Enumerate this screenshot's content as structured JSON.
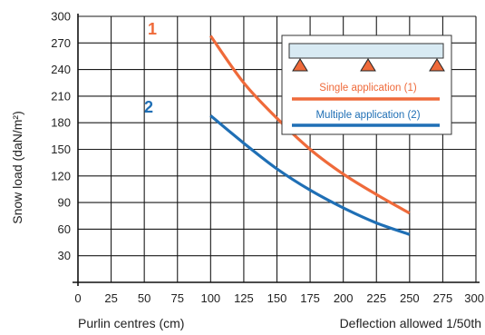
{
  "chart_data": {
    "type": "line",
    "xlabel": "Purlin centres (cm)",
    "x_note": "Deflection allowed 1/50th",
    "ylabel": "Snow load  (daN/m²)",
    "xlim": [
      0,
      300
    ],
    "ylim": [
      0,
      300
    ],
    "x_ticks": [
      "0",
      "25",
      "50",
      "75",
      "100",
      "125",
      "150",
      "175",
      "200",
      "225",
      "250",
      "275",
      "300"
    ],
    "y_ticks": [
      "30",
      "60",
      "90",
      "120",
      "150",
      "180",
      "210",
      "240",
      "270",
      "300"
    ],
    "grid": true,
    "legend_placement": "top-right",
    "series": [
      {
        "name": "Single application (1)",
        "curve_label": "1",
        "color": "#ef6a3a",
        "x": [
          100,
          125,
          150,
          175,
          200,
          225,
          250
        ],
        "y": [
          278,
          225,
          185,
          150,
          122,
          99,
          78
        ]
      },
      {
        "name": "Multiple application (2)",
        "curve_label": "2",
        "color": "#1f6fb5",
        "x": [
          100,
          125,
          150,
          175,
          200,
          225,
          250
        ],
        "y": [
          188,
          157,
          128,
          104,
          84,
          67,
          54
        ]
      }
    ]
  }
}
